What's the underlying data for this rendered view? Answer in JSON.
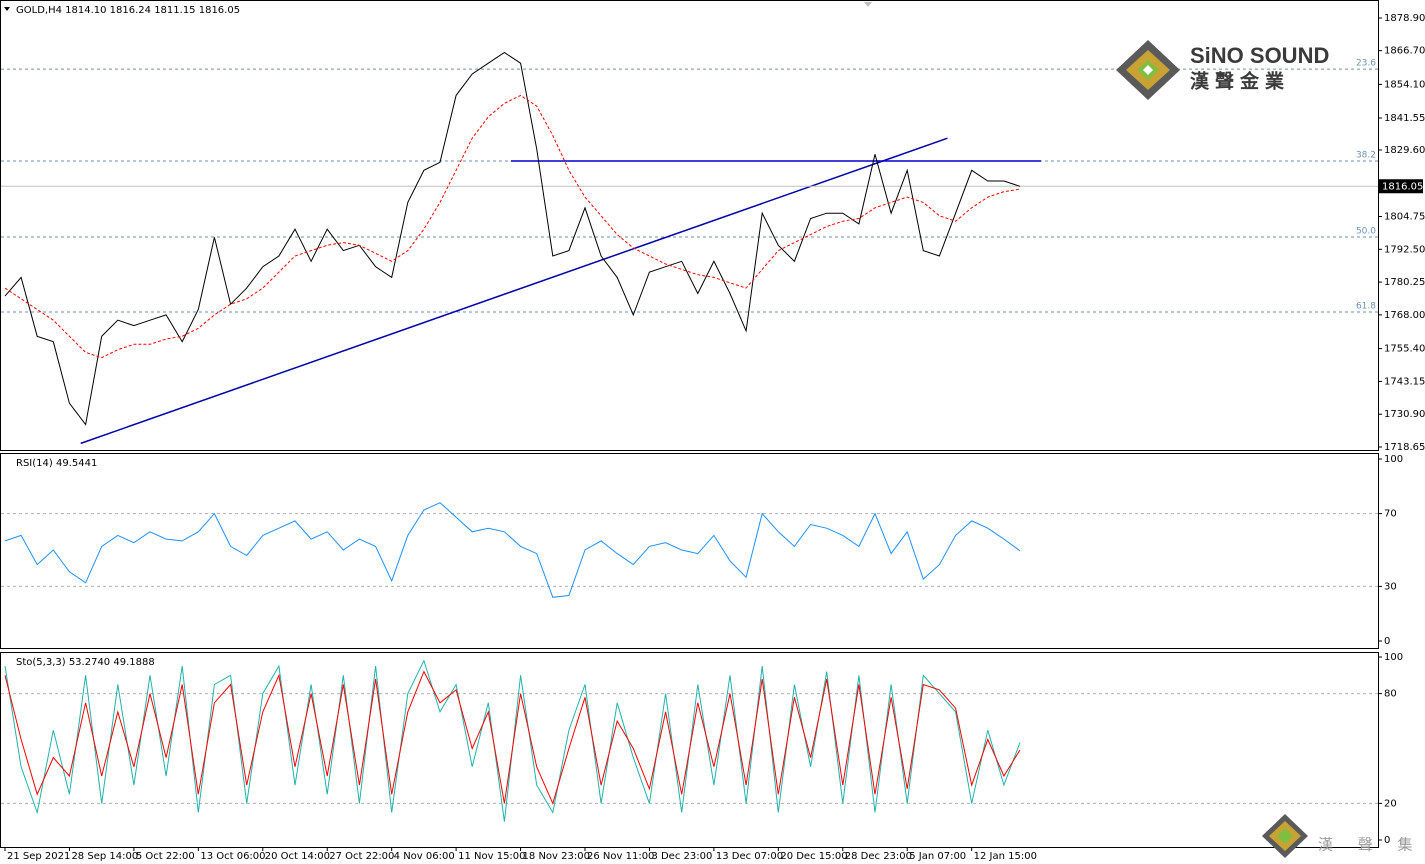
{
  "logo": {
    "brand": "SiNO SOUND",
    "brand_cjk": "漢聲金業",
    "group_cjk": "漢 聲 集 團"
  },
  "chart_data": [
    {
      "type": "line",
      "title": "GOLD,H4  1814.10 1816.24 1811.15 1816.05",
      "categories": [
        "21 Sep 2021",
        null,
        null,
        null,
        "28 Sep 14:00",
        null,
        null,
        null,
        "5 Oct 22:00",
        null,
        null,
        null,
        "13 Oct 06:00",
        null,
        null,
        null,
        "20 Oct 14:00",
        null,
        null,
        null,
        "27 Oct 22:00",
        null,
        null,
        null,
        "4 Nov 06:00",
        null,
        null,
        null,
        "11 Nov 15:00",
        null,
        null,
        null,
        "18 Nov 23:00",
        null,
        null,
        null,
        "26 Nov 11:00",
        null,
        null,
        null,
        "3 Dec 23:00",
        null,
        null,
        null,
        "13 Dec 07:00",
        null,
        null,
        null,
        "20 Dec 15:00",
        null,
        null,
        null,
        "28 Dec 23:00",
        null,
        null,
        null,
        "5 Jan 07:00",
        null,
        null,
        null,
        "12 Jan 15:00",
        null,
        null,
        null
      ],
      "series": [
        {
          "name": "GOLD,H4",
          "color": "#000000",
          "values": [
            1775,
            1782,
            1760,
            1758,
            1735,
            1727,
            1760,
            1766,
            1764,
            1766,
            1768,
            1758,
            1770,
            1797,
            1772,
            1778,
            1786,
            1790,
            1800,
            1788,
            1800,
            1792,
            1794,
            1786,
            1782,
            1810,
            1822,
            1825,
            1850,
            1858,
            1862,
            1866,
            1862,
            1830,
            1790,
            1792,
            1808,
            1790,
            1782,
            1768,
            1784,
            1786,
            1788,
            1776,
            1788,
            1776,
            1762,
            1806,
            1794,
            1788,
            1804,
            1806,
            1806,
            1802,
            1828,
            1806,
            1822,
            1792,
            1790,
            1806,
            1822,
            1818,
            1818,
            1816.05
          ]
        },
        {
          "name": "MA",
          "color": "#ff0000",
          "dashed": true,
          "values": [
            1778,
            1774,
            1770,
            1766,
            1760,
            1754,
            1752,
            1755,
            1757,
            1757,
            1759,
            1760,
            1763,
            1768,
            1772,
            1774,
            1778,
            1784,
            1790,
            1792,
            1794,
            1795,
            1794,
            1791,
            1788,
            1792,
            1800,
            1810,
            1822,
            1834,
            1842,
            1847,
            1850,
            1846,
            1835,
            1822,
            1812,
            1805,
            1798,
            1793,
            1790,
            1787,
            1785,
            1783,
            1782,
            1780,
            1778,
            1785,
            1792,
            1795,
            1798,
            1801,
            1803,
            1804,
            1808,
            1810,
            1812,
            1810,
            1805,
            1803,
            1808,
            1812,
            1814,
            1815
          ]
        }
      ],
      "current_price_line": true,
      "ylim": [
        1718.65,
        1878.9
      ],
      "yticks": [
        {
          "value": 1878.9,
          "label": "1878.90"
        },
        {
          "value": 1866.7,
          "label": "1866.70"
        },
        {
          "value": 1854.1,
          "label": "1854.10"
        },
        1841.55,
        {
          "value": 1829.6,
          "label": "1829.60"
        },
        1804.75,
        {
          "value": 1792.5,
          "label": "1792.50"
        },
        1780.25,
        {
          "value": 1768,
          "label": "1768.00"
        },
        {
          "value": 1755.4,
          "label": "1755.40"
        },
        1743.15,
        {
          "value": 1730.9,
          "label": "1730.90"
        },
        1718.65
      ],
      "fibonacci": [
        {
          "label": "23.6",
          "price": 1859.8
        },
        {
          "label": "38.2",
          "price": 1825.5
        },
        {
          "label": "50.0",
          "price": 1797.1
        },
        {
          "label": "61.8",
          "price": 1769.1
        }
      ],
      "lines": [
        {
          "x": [
            4.7,
            58.5
          ],
          "y": [
            1720,
            1834
          ],
          "color": "#0000aa"
        },
        {
          "x": [
            31.4,
            64.3
          ],
          "y": [
            1825.5,
            1825.5
          ],
          "color": "#0000cc"
        }
      ]
    },
    {
      "type": "line",
      "title": "RSI(14) 49.5441",
      "series": [
        {
          "name": "RSI(14)",
          "color": "#1e90ff",
          "values": [
            55,
            58,
            42,
            50,
            38,
            32,
            52,
            58,
            54,
            60,
            56,
            55,
            60,
            70,
            52,
            47,
            58,
            62,
            66,
            56,
            60,
            50,
            56,
            52,
            33,
            58,
            72,
            76,
            68,
            60,
            62,
            60,
            52,
            48,
            24,
            25,
            50,
            55,
            48,
            42,
            52,
            54,
            50,
            48,
            58,
            44,
            35,
            70,
            60,
            52,
            64,
            62,
            58,
            52,
            70,
            48,
            60,
            34,
            42,
            58,
            66,
            62,
            56,
            49.5441
          ]
        }
      ],
      "ylim": [
        0,
        100
      ],
      "yticks": [
        0,
        30,
        70,
        100
      ],
      "levels": [
        30,
        70
      ]
    },
    {
      "type": "line",
      "title": "Sto(5,3,3) 53.2740 49.1888",
      "series": [
        {
          "name": "Main",
          "color": "#20b2aa",
          "values": [
            95,
            40,
            15,
            60,
            25,
            90,
            20,
            85,
            30,
            90,
            35,
            95,
            15,
            85,
            90,
            20,
            80,
            95,
            30,
            85,
            25,
            90,
            20,
            95,
            15,
            80,
            98,
            70,
            85,
            40,
            75,
            10,
            90,
            30,
            15,
            60,
            85,
            20,
            75,
            45,
            20,
            80,
            15,
            85,
            30,
            90,
            20,
            95,
            15,
            85,
            40,
            92,
            20,
            90,
            15,
            85,
            20,
            90,
            80,
            70,
            20,
            60,
            30,
            53.274
          ]
        },
        {
          "name": "Signal",
          "color": "#ff0000",
          "values": [
            90,
            55,
            25,
            45,
            35,
            75,
            35,
            70,
            40,
            80,
            45,
            85,
            25,
            75,
            85,
            30,
            70,
            90,
            40,
            80,
            35,
            85,
            30,
            88,
            25,
            70,
            92,
            75,
            82,
            50,
            70,
            20,
            80,
            40,
            20,
            50,
            78,
            30,
            65,
            50,
            28,
            70,
            25,
            75,
            40,
            80,
            30,
            88,
            25,
            78,
            45,
            88,
            30,
            85,
            25,
            78,
            28,
            85,
            82,
            72,
            30,
            55,
            35,
            49.1888
          ]
        }
      ],
      "ylim": [
        0,
        100
      ],
      "yticks": [
        0,
        20,
        80,
        100
      ],
      "levels": [
        20,
        80
      ]
    }
  ]
}
